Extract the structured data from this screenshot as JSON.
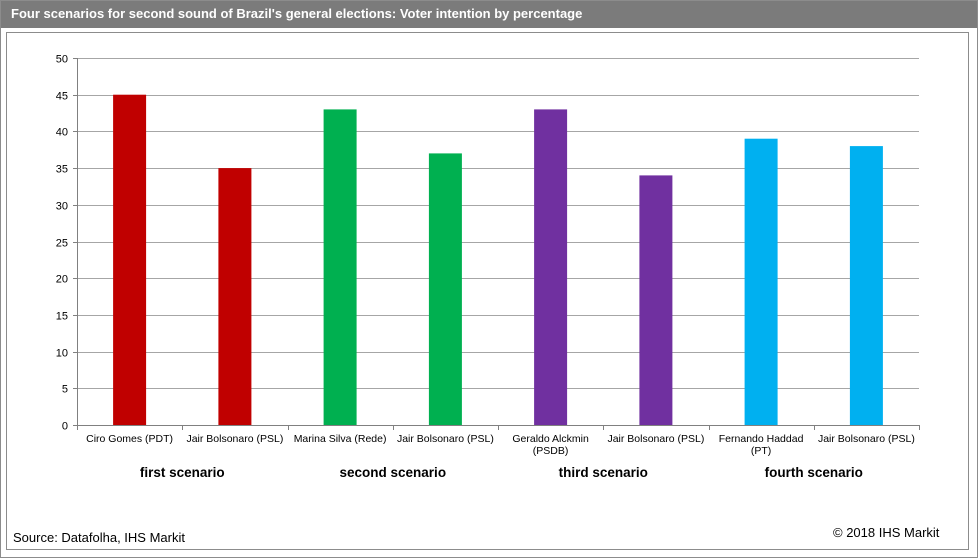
{
  "title": "Four scenarios for second sound  of Brazil's general elections: Voter intention by percentage",
  "source": "Source:  Datafolha,  IHS Markit",
  "copyright": "© 2018 IHS Markit",
  "chart_data": {
    "type": "bar",
    "title": "Four scenarios for second sound  of Brazil's general elections: Voter intention by percentage",
    "xlabel": "",
    "ylabel": "",
    "ylim": [
      0,
      50
    ],
    "yticks": [
      0,
      5,
      10,
      15,
      20,
      25,
      30,
      35,
      40,
      45,
      50
    ],
    "grid": true,
    "legend": "none",
    "categories": [
      "Ciro Gomes (PDT)",
      "Jair Bolsonaro (PSL)",
      "Marina Silva (Rede)",
      "Jair Bolsonaro (PSL)",
      "Geraldo Alckmin (PSDB)",
      "Jair Bolsonaro (PSL)",
      "Fernando Haddad (PT)",
      "Jair Bolsonaro (PSL)"
    ],
    "category_lines": [
      [
        "Ciro Gomes (PDT)"
      ],
      [
        "Jair Bolsonaro (PSL)"
      ],
      [
        "Marina Silva (Rede)"
      ],
      [
        "Jair Bolsonaro (PSL)"
      ],
      [
        "Geraldo Alckmin",
        "(PSDB)"
      ],
      [
        "Jair Bolsonaro (PSL)"
      ],
      [
        "Fernando Haddad",
        "(PT)"
      ],
      [
        "Jair Bolsonaro (PSL)"
      ]
    ],
    "values": [
      45,
      35,
      43,
      37,
      43,
      34,
      39,
      38
    ],
    "bar_colors": [
      "#c00000",
      "#c00000",
      "#00b050",
      "#00b050",
      "#7030a0",
      "#7030a0",
      "#00b0f0",
      "#00b0f0"
    ],
    "groups": [
      {
        "label": "first scenario",
        "categories": [
          0,
          1
        ]
      },
      {
        "label": "second scenario",
        "categories": [
          2,
          3
        ]
      },
      {
        "label": "third scenario",
        "categories": [
          4,
          5
        ]
      },
      {
        "label": "fourth scenario",
        "categories": [
          6,
          7
        ]
      }
    ],
    "gridline_color": "#a6a6a6",
    "axis_color": "#808080"
  }
}
